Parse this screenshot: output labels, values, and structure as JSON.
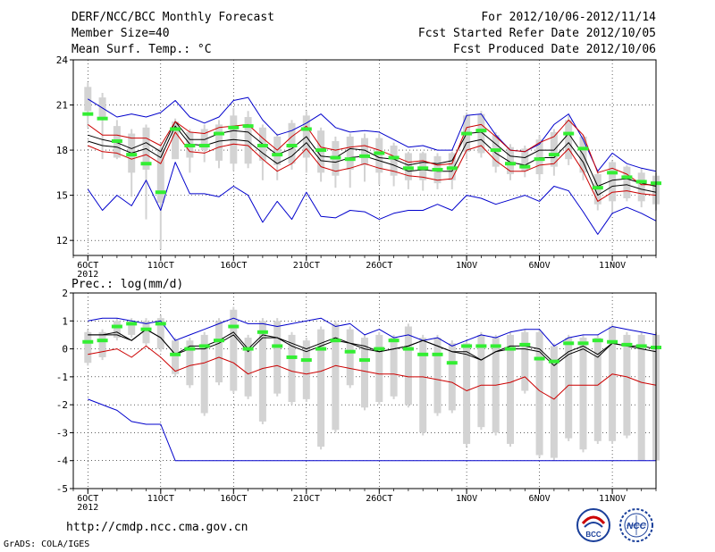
{
  "header": {
    "title": "DERF/NCC/BCC Monthly Forecast",
    "member_size": "Member Size=40",
    "variable1": "Mean Surf. Temp.: °C",
    "range": "For 2012/10/06-2012/11/14",
    "started": "Fcst Started Refer Date 2012/10/05",
    "produced": "Fcst Produced Date 2012/10/06"
  },
  "footer": {
    "url": "http://cmdp.ncc.cma.gov.cn",
    "grads": "GrADS: COLA/IGES",
    "logo_left_text": "BCC",
    "logo_right_text": "NCC"
  },
  "colors": {
    "max_min": "#0000cc",
    "ensemble_mean": "#000000",
    "observed": "#cc0000",
    "box": "#d3d3d3",
    "median": "#33ee33",
    "grid": "#000000"
  },
  "chart_data": [
    {
      "type": "line",
      "name": "temperature",
      "title": "Mean Surf. Temp.: °C",
      "ylim": [
        11,
        24
      ],
      "yticks": [
        12,
        15,
        18,
        21,
        24
      ],
      "xlim": [
        0,
        40
      ],
      "xticks": [
        {
          "x": 1,
          "label": "6OCT"
        },
        {
          "x": 6,
          "label": "11OCT"
        },
        {
          "x": 11,
          "label": "16OCT"
        },
        {
          "x": 16,
          "label": "21OCT"
        },
        {
          "x": 21,
          "label": "26OCT"
        },
        {
          "x": 27,
          "label": "1NOV"
        },
        {
          "x": 32,
          "label": "6NOV"
        },
        {
          "x": 37,
          "label": "11NOV"
        }
      ],
      "year_label": "2012",
      "days": [
        1,
        2,
        3,
        4,
        5,
        6,
        7,
        8,
        9,
        10,
        11,
        12,
        13,
        14,
        15,
        16,
        17,
        18,
        19,
        20,
        21,
        22,
        23,
        24,
        25,
        26,
        27,
        28,
        29,
        30,
        31,
        32,
        33,
        34,
        35,
        36,
        37,
        38,
        39,
        40
      ],
      "series": [
        {
          "name": "max",
          "values": [
            15.4,
            14.0,
            15.0,
            14.3,
            16.0,
            14.0,
            17.2,
            15.1,
            15.1,
            14.9,
            15.6,
            15.0,
            13.2,
            14.6,
            13.4,
            15.2,
            13.6,
            13.5,
            14.0,
            13.9,
            13.4,
            13.8,
            14.0,
            14.0,
            14.4,
            14.0,
            15.0,
            14.8,
            14.4,
            14.7,
            15.0,
            14.6,
            15.6,
            15.3,
            13.9,
            12.4,
            13.8,
            14.2,
            13.8,
            13.3
          ]
        },
        {
          "name": "min",
          "values": [
            21.4,
            20.8,
            20.2,
            20.4,
            20.2,
            20.5,
            21.3,
            20.2,
            19.8,
            20.2,
            21.3,
            21.5,
            20.0,
            19.0,
            19.3,
            19.8,
            20.4,
            19.5,
            19.2,
            19.3,
            19.2,
            18.7,
            18.2,
            18.3,
            18.0,
            18.0,
            20.3,
            20.4,
            19.0,
            18.0,
            17.9,
            18.4,
            19.7,
            20.4,
            18.7,
            16.6,
            17.8,
            17.1,
            16.8,
            16.6
          ]
        },
        {
          "name": "mean",
          "values": [
            18.6,
            18.3,
            18.2,
            17.8,
            18.1,
            17.5,
            19.6,
            18.4,
            18.3,
            18.6,
            18.7,
            18.6,
            17.8,
            17.1,
            17.6,
            18.5,
            17.3,
            17.2,
            17.5,
            17.6,
            17.3,
            17.0,
            16.6,
            16.7,
            16.6,
            16.6,
            18.5,
            18.7,
            17.8,
            17.2,
            17.0,
            17.5,
            17.5,
            18.5,
            17.2,
            15.0,
            15.6,
            15.7,
            15.4,
            15.2
          ]
        },
        {
          "name": "mean_upper",
          "values": [
            19.0,
            18.7,
            18.5,
            18.1,
            18.5,
            17.9,
            19.9,
            18.7,
            18.7,
            19.1,
            19.3,
            19.2,
            18.4,
            17.7,
            18.1,
            18.9,
            17.6,
            17.5,
            18.1,
            18.0,
            17.5,
            17.4,
            17.0,
            17.2,
            17.1,
            17.3,
            19.1,
            19.2,
            18.4,
            17.6,
            17.5,
            18.0,
            18.0,
            19.1,
            17.7,
            15.6,
            16.0,
            16.1,
            15.8,
            15.6
          ]
        },
        {
          "name": "observed",
          "values": [
            18.3,
            17.9,
            17.8,
            17.4,
            17.7,
            17.1,
            19.2,
            17.9,
            17.8,
            18.2,
            18.4,
            18.3,
            17.4,
            16.6,
            17.1,
            18.1,
            16.9,
            16.6,
            16.8,
            17.1,
            16.8,
            16.6,
            16.3,
            16.2,
            16.0,
            16.1,
            18.0,
            18.3,
            17.3,
            16.6,
            16.6,
            17.0,
            17.1,
            18.1,
            16.6,
            14.6,
            15.2,
            15.3,
            15.1,
            15.0
          ]
        },
        {
          "name": "observed_upper",
          "values": [
            19.7,
            19.0,
            19.0,
            18.8,
            18.8,
            18.3,
            19.9,
            19.2,
            19.1,
            19.5,
            19.6,
            19.7,
            18.8,
            18.0,
            18.9,
            19.6,
            18.2,
            18.0,
            18.2,
            18.3,
            18.0,
            17.6,
            17.2,
            17.3,
            17.0,
            17.1,
            19.5,
            19.7,
            18.9,
            18.0,
            17.9,
            18.5,
            18.9,
            20.0,
            19.0,
            16.5,
            16.8,
            16.4,
            15.7,
            15.7
          ]
        }
      ],
      "boxes": {
        "low": [
          20.6,
          20.0,
          17.5,
          16.5,
          16.7,
          14.5,
          17.4,
          17.5,
          18.0,
          17.3,
          17.1,
          17.1,
          17.3,
          17.0,
          17.1,
          17.5,
          16.5,
          16.3,
          16.7,
          17.0,
          16.5,
          16.3,
          16.0,
          16.0,
          15.8,
          16.0,
          17.9,
          17.8,
          16.9,
          16.4,
          16.6,
          16.4,
          16.9,
          17.4,
          16.5,
          14.4,
          14.6,
          14.8,
          14.6,
          14.4
        ],
        "high": [
          22.2,
          21.5,
          19.6,
          19.1,
          19.5,
          18.1,
          19.9,
          19.2,
          19.4,
          19.7,
          20.3,
          20.2,
          19.5,
          18.9,
          19.8,
          20.3,
          19.3,
          18.6,
          18.9,
          18.8,
          18.8,
          18.3,
          17.8,
          17.8,
          17.6,
          17.8,
          20.3,
          20.4,
          19.0,
          18.2,
          18.1,
          18.7,
          19.2,
          20.0,
          18.9,
          16.4,
          17.2,
          16.9,
          16.5,
          16.3
        ],
        "whisker_low": [
          19.5,
          17.4,
          17.4,
          14.9,
          13.4,
          11.4,
          18.3,
          16.5,
          17.2,
          16.8,
          16.6,
          16.8,
          16.0,
          16.0,
          16.7,
          16.5,
          15.9,
          15.5,
          15.5,
          15.9,
          15.7,
          15.6,
          15.4,
          15.3,
          15.4,
          15.4,
          17.4,
          17.5,
          16.5,
          16.0,
          16.2,
          16.0,
          16.3,
          17.0,
          16.0,
          14.0,
          13.8,
          14.6,
          14.2,
          14.0
        ],
        "whisker_high": [
          22.5,
          21.8,
          20.0,
          19.4,
          19.7,
          18.5,
          20.1,
          19.4,
          19.7,
          20.0,
          20.8,
          20.6,
          19.7,
          19.1,
          20.0,
          20.6,
          19.5,
          18.9,
          19.1,
          19.1,
          19.1,
          18.5,
          17.9,
          17.9,
          17.8,
          17.9,
          20.5,
          20.6,
          19.2,
          18.4,
          18.3,
          19.0,
          19.4,
          20.3,
          19.0,
          16.6,
          17.3,
          17.0,
          16.8,
          16.5
        ],
        "median": [
          20.4,
          20.1,
          18.6,
          17.7,
          17.1,
          15.2,
          19.4,
          18.3,
          18.3,
          19.1,
          19.5,
          19.6,
          18.3,
          17.7,
          18.3,
          19.4,
          18.0,
          17.5,
          17.4,
          17.6,
          17.8,
          17.5,
          16.8,
          16.8,
          16.7,
          16.8,
          19.1,
          19.3,
          18.0,
          17.1,
          16.9,
          17.4,
          17.7,
          19.1,
          18.1,
          15.5,
          16.5,
          16.2,
          15.9,
          15.8
        ]
      }
    },
    {
      "type": "line",
      "name": "precipitation",
      "title": "Prec.: log(mm/d)",
      "ylim": [
        -5,
        2
      ],
      "yticks": [
        -5,
        -4,
        -3,
        -2,
        -1,
        0,
        1,
        2
      ],
      "xlim": [
        0,
        40
      ],
      "xticks": [
        {
          "x": 1,
          "label": "6OCT"
        },
        {
          "x": 6,
          "label": "11OCT"
        },
        {
          "x": 11,
          "label": "16OCT"
        },
        {
          "x": 16,
          "label": "21OCT"
        },
        {
          "x": 21,
          "label": "26OCT"
        },
        {
          "x": 27,
          "label": "1NOV"
        },
        {
          "x": 32,
          "label": "6NOV"
        },
        {
          "x": 37,
          "label": "11NOV"
        }
      ],
      "year_label": "2012",
      "days": [
        1,
        2,
        3,
        4,
        5,
        6,
        7,
        8,
        9,
        10,
        11,
        12,
        13,
        14,
        15,
        16,
        17,
        18,
        19,
        20,
        21,
        22,
        23,
        24,
        25,
        26,
        27,
        28,
        29,
        30,
        31,
        32,
        33,
        34,
        35,
        36,
        37,
        38,
        39,
        40
      ],
      "series": [
        {
          "name": "max",
          "values": [
            1.0,
            1.1,
            1.1,
            1.0,
            0.9,
            1.0,
            0.3,
            0.5,
            0.7,
            0.9,
            1.1,
            0.9,
            0.9,
            0.8,
            0.9,
            1.0,
            1.1,
            0.8,
            0.9,
            0.5,
            0.7,
            0.4,
            0.5,
            0.3,
            0.4,
            0.1,
            0.3,
            0.5,
            0.4,
            0.6,
            0.7,
            0.7,
            0.1,
            0.4,
            0.5,
            0.5,
            0.8,
            0.7,
            0.6,
            0.5
          ]
        },
        {
          "name": "min",
          "values": [
            -1.8,
            -2.0,
            -2.2,
            -2.6,
            -2.7,
            -2.7,
            -4.0,
            -4.0,
            -4.0,
            -4.0,
            -4.0,
            -4.0,
            -4.0,
            -4.0,
            -4.0,
            -4.0,
            -4.0,
            -4.0,
            -4.0,
            -4.0,
            -4.0,
            -4.0,
            -4.0,
            -4.0,
            -4.0,
            -4.0,
            -4.0,
            -4.0,
            -4.0,
            -4.0,
            -4.0,
            -4.0,
            -4.0,
            -4.0,
            -4.0,
            -4.0,
            -4.0,
            -4.0,
            -4.0,
            -4.0
          ]
        },
        {
          "name": "mean",
          "values": [
            0.5,
            0.5,
            0.5,
            0.3,
            0.7,
            0.4,
            -0.2,
            0.0,
            0.0,
            0.2,
            0.5,
            -0.1,
            0.4,
            0.4,
            0.1,
            -0.1,
            0.1,
            0.3,
            0.2,
            0.0,
            -0.1,
            0.0,
            0.1,
            0.3,
            0.1,
            -0.1,
            -0.2,
            -0.4,
            -0.1,
            0.0,
            0.0,
            -0.1,
            -0.6,
            -0.2,
            0.0,
            -0.3,
            0.2,
            0.1,
            0.0,
            -0.1
          ]
        },
        {
          "name": "mean_upper",
          "values": [
            0.5,
            0.5,
            0.6,
            0.3,
            0.7,
            0.4,
            -0.2,
            0.1,
            0.1,
            0.3,
            0.6,
            0.0,
            0.5,
            0.4,
            0.2,
            0.0,
            0.2,
            0.4,
            0.2,
            0.1,
            -0.1,
            0.0,
            0.1,
            0.3,
            0.1,
            -0.1,
            -0.1,
            -0.4,
            -0.1,
            0.1,
            0.1,
            0.0,
            -0.5,
            -0.1,
            0.1,
            -0.2,
            0.2,
            0.1,
            0.1,
            0.0
          ]
        },
        {
          "name": "observed",
          "values": [
            -0.2,
            -0.1,
            0.0,
            -0.3,
            0.1,
            -0.3,
            -0.8,
            -0.6,
            -0.5,
            -0.3,
            -0.5,
            -0.9,
            -0.7,
            -0.6,
            -0.8,
            -0.9,
            -0.8,
            -0.6,
            -0.7,
            -0.8,
            -0.9,
            -0.9,
            -1.0,
            -1.0,
            -1.1,
            -1.2,
            -1.5,
            -1.3,
            -1.3,
            -1.2,
            -1.0,
            -1.5,
            -1.8,
            -1.3,
            -1.3,
            -1.3,
            -0.9,
            -1.0,
            -1.2,
            -1.3
          ]
        }
      ],
      "boxes": {
        "low": [
          -0.5,
          -0.3,
          0.4,
          0.5,
          0.2,
          0.0,
          -0.9,
          -1.3,
          -2.3,
          -1.2,
          -1.5,
          -1.7,
          -2.6,
          -1.6,
          -1.9,
          -1.8,
          -3.5,
          -2.9,
          -1.3,
          -2.1,
          -1.9,
          -1.7,
          -2.0,
          -3.0,
          -2.3,
          -2.2,
          -3.4,
          -2.8,
          -3.0,
          -3.4,
          -1.5,
          -3.8,
          -3.9,
          -3.2,
          -3.6,
          -3.3,
          -3.3,
          -3.1,
          -4.0,
          -4.0
        ],
        "high": [
          0.6,
          0.6,
          1.0,
          1.0,
          1.0,
          1.1,
          0.3,
          0.3,
          0.5,
          1.0,
          1.4,
          0.4,
          1.0,
          1.0,
          0.5,
          0.3,
          0.7,
          0.9,
          0.7,
          0.4,
          0.5,
          0.4,
          0.8,
          0.4,
          0.4,
          0.2,
          0.2,
          0.5,
          0.4,
          0.5,
          0.6,
          0.6,
          0.1,
          0.4,
          0.4,
          0.4,
          0.8,
          0.5,
          0.5,
          0.5
        ],
        "whisker_low": [
          -0.6,
          -0.4,
          0.3,
          0.4,
          0.1,
          -0.1,
          -1.0,
          -1.4,
          -2.4,
          -1.3,
          -1.6,
          -1.8,
          -2.7,
          -1.7,
          -2.0,
          -1.9,
          -3.6,
          -3.0,
          -1.4,
          -2.2,
          -2.0,
          -1.8,
          -2.1,
          -3.1,
          -2.4,
          -2.3,
          -3.5,
          -2.9,
          -3.1,
          -3.5,
          -1.6,
          -3.9,
          -4.0,
          -3.3,
          -3.7,
          -3.4,
          -3.4,
          -3.2,
          -4.0,
          -4.0
        ],
        "whisker_high": [
          0.7,
          0.7,
          1.1,
          1.1,
          1.1,
          1.2,
          0.4,
          0.4,
          0.6,
          1.1,
          1.5,
          0.5,
          1.1,
          1.1,
          0.6,
          0.4,
          0.8,
          1.0,
          0.8,
          0.5,
          0.6,
          0.5,
          0.9,
          0.5,
          0.5,
          0.3,
          0.3,
          0.6,
          0.5,
          0.6,
          0.7,
          0.7,
          0.2,
          0.5,
          0.5,
          0.5,
          0.9,
          0.6,
          0.6,
          0.6
        ],
        "median": [
          0.25,
          0.3,
          0.8,
          0.9,
          0.7,
          0.9,
          -0.2,
          0.0,
          0.1,
          0.3,
          0.8,
          0.0,
          0.6,
          0.1,
          -0.3,
          -0.4,
          0.0,
          0.3,
          -0.1,
          -0.4,
          0.0,
          0.3,
          0.0,
          -0.2,
          -0.2,
          -0.5,
          0.1,
          0.1,
          0.1,
          0.0,
          0.15,
          -0.35,
          -0.45,
          0.2,
          0.2,
          0.3,
          0.25,
          0.15,
          0.1,
          0.05
        ]
      }
    }
  ]
}
